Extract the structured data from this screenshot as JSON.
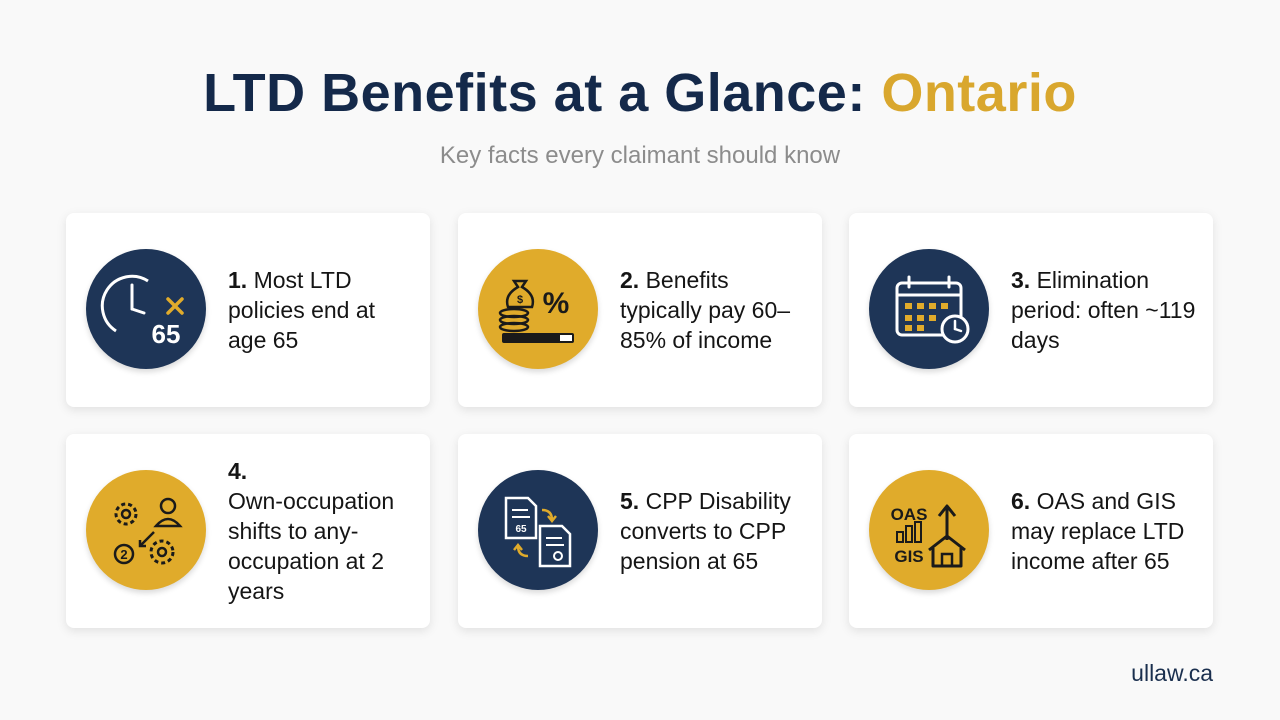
{
  "header": {
    "title_main": "LTD Benefits at a Glance: ",
    "title_accent": "Ontario",
    "subtitle": "Key facts every claimant should know"
  },
  "cards": [
    {
      "number": "1.",
      "text": " Most LTD policies end at age 65",
      "icon": "clock-65-icon",
      "icon_bg": "#1e3557",
      "icon_label": "65"
    },
    {
      "number": "2.",
      "text": " Benefits typically pay 60–85% of income",
      "icon": "money-bag-percent-icon",
      "icon_bg": "#e0ab2b",
      "icon_label": "%"
    },
    {
      "number": "3.",
      "text": " Elimination period: often ~119 days",
      "icon": "calendar-clock-icon",
      "icon_bg": "#1e3557"
    },
    {
      "number": "4.",
      "text": " Own-occupation shifts to any-occupation at 2 years",
      "icon": "gears-person-icon",
      "icon_bg": "#e0ab2b",
      "icon_label": "2"
    },
    {
      "number": "5.",
      "text": " CPP Disability converts to CPP pension at 65",
      "icon": "documents-convert-icon",
      "icon_bg": "#1e3557",
      "icon_label": "65"
    },
    {
      "number": "6.",
      "text": " OAS and GIS may replace LTD income after 65",
      "icon": "oas-gis-house-icon",
      "icon_bg": "#e0ab2b",
      "icon_label_1": "OAS",
      "icon_label_2": "GIS"
    }
  ],
  "footer": {
    "site": "ullaw.ca"
  },
  "colors": {
    "navy": "#14294a",
    "gold": "#d9a72e",
    "subtitle": "#8c8c8c"
  }
}
